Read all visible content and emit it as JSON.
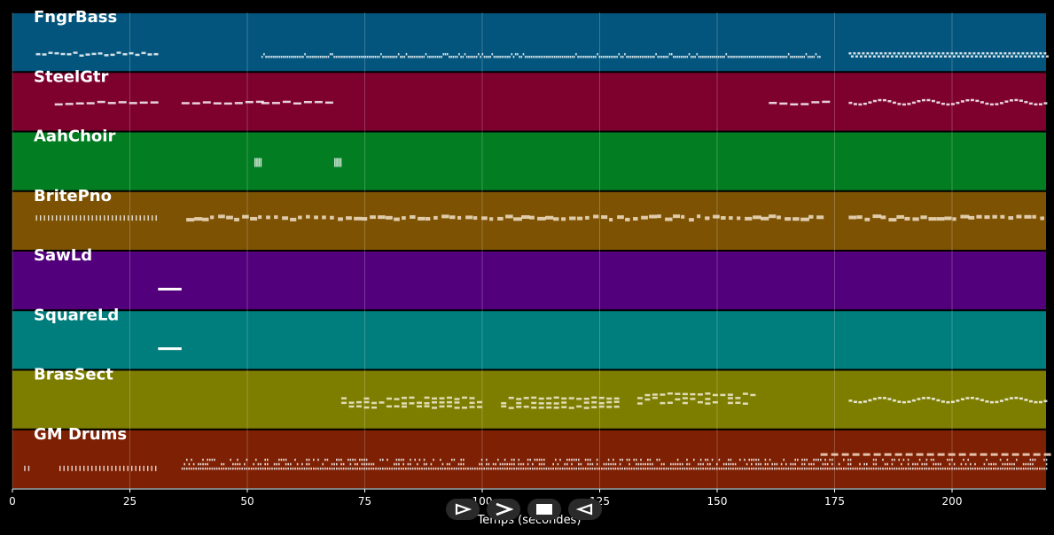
{
  "chart_data": {
    "type": "piano-roll",
    "xlabel": "Temps (secondes)",
    "xlim": [
      0,
      220
    ],
    "xticks": [
      0,
      25,
      50,
      75,
      100,
      125,
      150,
      175,
      200
    ],
    "grid": true,
    "tracks": [
      {
        "name": "FngrBass",
        "color": "#03557d",
        "segments": [
          {
            "start": 5,
            "end": 31,
            "style": "sparse",
            "y": 0.72
          },
          {
            "start": 53,
            "end": 172,
            "style": "dense",
            "y": 0.75
          },
          {
            "start": 178,
            "end": 220,
            "style": "checker",
            "y": 0.72
          }
        ]
      },
      {
        "name": "SteelGtr",
        "color": "#7d002d",
        "segments": [
          {
            "start": 9,
            "end": 31,
            "style": "dash",
            "y": 0.52
          },
          {
            "start": 36,
            "end": 52,
            "style": "dash",
            "y": 0.52
          },
          {
            "start": 53,
            "end": 68,
            "style": "dash",
            "y": 0.52
          },
          {
            "start": 161,
            "end": 173,
            "style": "dash",
            "y": 0.52
          },
          {
            "start": 178,
            "end": 220,
            "style": "wavy",
            "y": 0.52
          }
        ]
      },
      {
        "name": "AahChoir",
        "color": "#027d22",
        "segments": [
          {
            "start": 51.5,
            "end": 53,
            "style": "block",
            "y": 0.52
          },
          {
            "start": 68.5,
            "end": 70,
            "style": "block",
            "y": 0.52
          }
        ]
      },
      {
        "name": "BritePno",
        "color": "#7d5203",
        "segments": [
          {
            "start": 5,
            "end": 31,
            "style": "ticks",
            "y": 0.45
          },
          {
            "start": 37,
            "end": 172,
            "style": "blocks",
            "y": 0.45
          },
          {
            "start": 178,
            "end": 220,
            "style": "blocks",
            "y": 0.45
          }
        ]
      },
      {
        "name": "SawLd",
        "color": "#53007d",
        "segments": [
          {
            "start": 31,
            "end": 36,
            "style": "line",
            "y": 0.65
          }
        ]
      },
      {
        "name": "SquareLd",
        "color": "#007d7d",
        "segments": [
          {
            "start": 31,
            "end": 36,
            "style": "line",
            "y": 0.65
          }
        ]
      },
      {
        "name": "BrasSect",
        "color": "#7d7d00",
        "segments": [
          {
            "start": 70,
            "end": 100,
            "style": "stack",
            "y": 0.55
          },
          {
            "start": 104,
            "end": 129,
            "style": "stack",
            "y": 0.55
          },
          {
            "start": 133,
            "end": 158,
            "style": "stack",
            "y": 0.48
          },
          {
            "start": 178,
            "end": 220,
            "style": "wavy",
            "y": 0.52
          }
        ]
      },
      {
        "name": "GM Drums",
        "color": "#7d2003",
        "segments": [
          {
            "start": 2.5,
            "end": 4,
            "style": "ticks",
            "y": 0.66
          },
          {
            "start": 10,
            "end": 31,
            "style": "ticks",
            "y": 0.66
          },
          {
            "start": 36,
            "end": 220,
            "style": "drums",
            "y": 0.66
          },
          {
            "start": 172,
            "end": 220,
            "style": "hidash",
            "y": 0.42
          }
        ]
      }
    ]
  },
  "transport": {
    "play_icon": "play-icon",
    "forward_icon": "forward-icon",
    "stop_icon": "stop-icon",
    "rewind_icon": "rewind-icon"
  }
}
